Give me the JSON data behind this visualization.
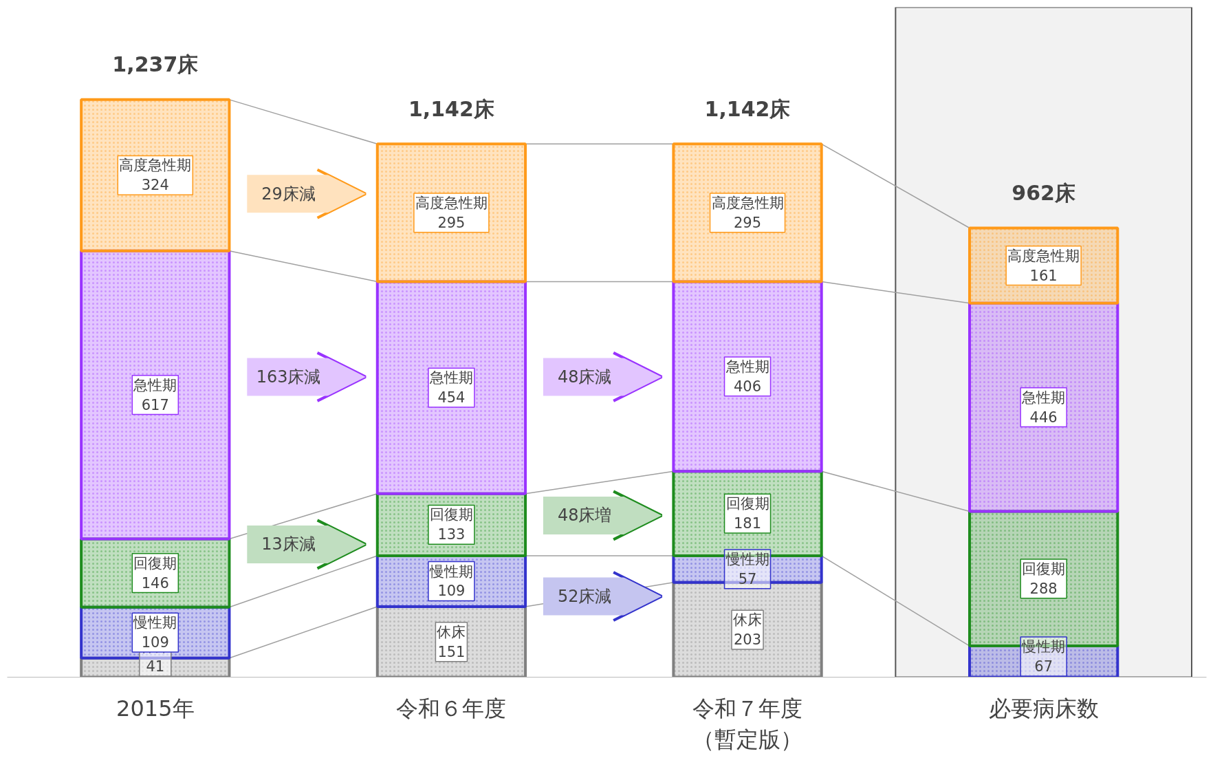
{
  "chart_data": {
    "type": "bar",
    "stacked": true,
    "data_labels": true,
    "categories": [
      "2015年",
      "令和６年度",
      "令和７年度（暫定版）",
      "必要病床数"
    ],
    "series": [
      {
        "name": "休床",
        "color": "#808080",
        "values": [
          41,
          151,
          203,
          null
        ]
      },
      {
        "name": "慢性期",
        "color": "#3333cc",
        "values": [
          109,
          109,
          57,
          67
        ]
      },
      {
        "name": "回復期",
        "color": "#1e8c1e",
        "values": [
          146,
          133,
          181,
          288
        ]
      },
      {
        "name": "急性期",
        "color": "#9933ff",
        "values": [
          617,
          454,
          406,
          446
        ]
      },
      {
        "name": "高度急性期",
        "color": "#ff9a1a",
        "values": [
          324,
          295,
          295,
          161
        ]
      }
    ],
    "totals": [
      "1,237床",
      "1,142床",
      "1,142床",
      "962床"
    ],
    "bands": [
      {
        "axis": "x",
        "from": "必要病床数",
        "to": "必要病床数",
        "color": "#f2f2f2"
      }
    ],
    "annotations": [
      "29床減",
      "163床減",
      "13床減",
      "48床減",
      "48床増",
      "52床減"
    ]
  }
}
